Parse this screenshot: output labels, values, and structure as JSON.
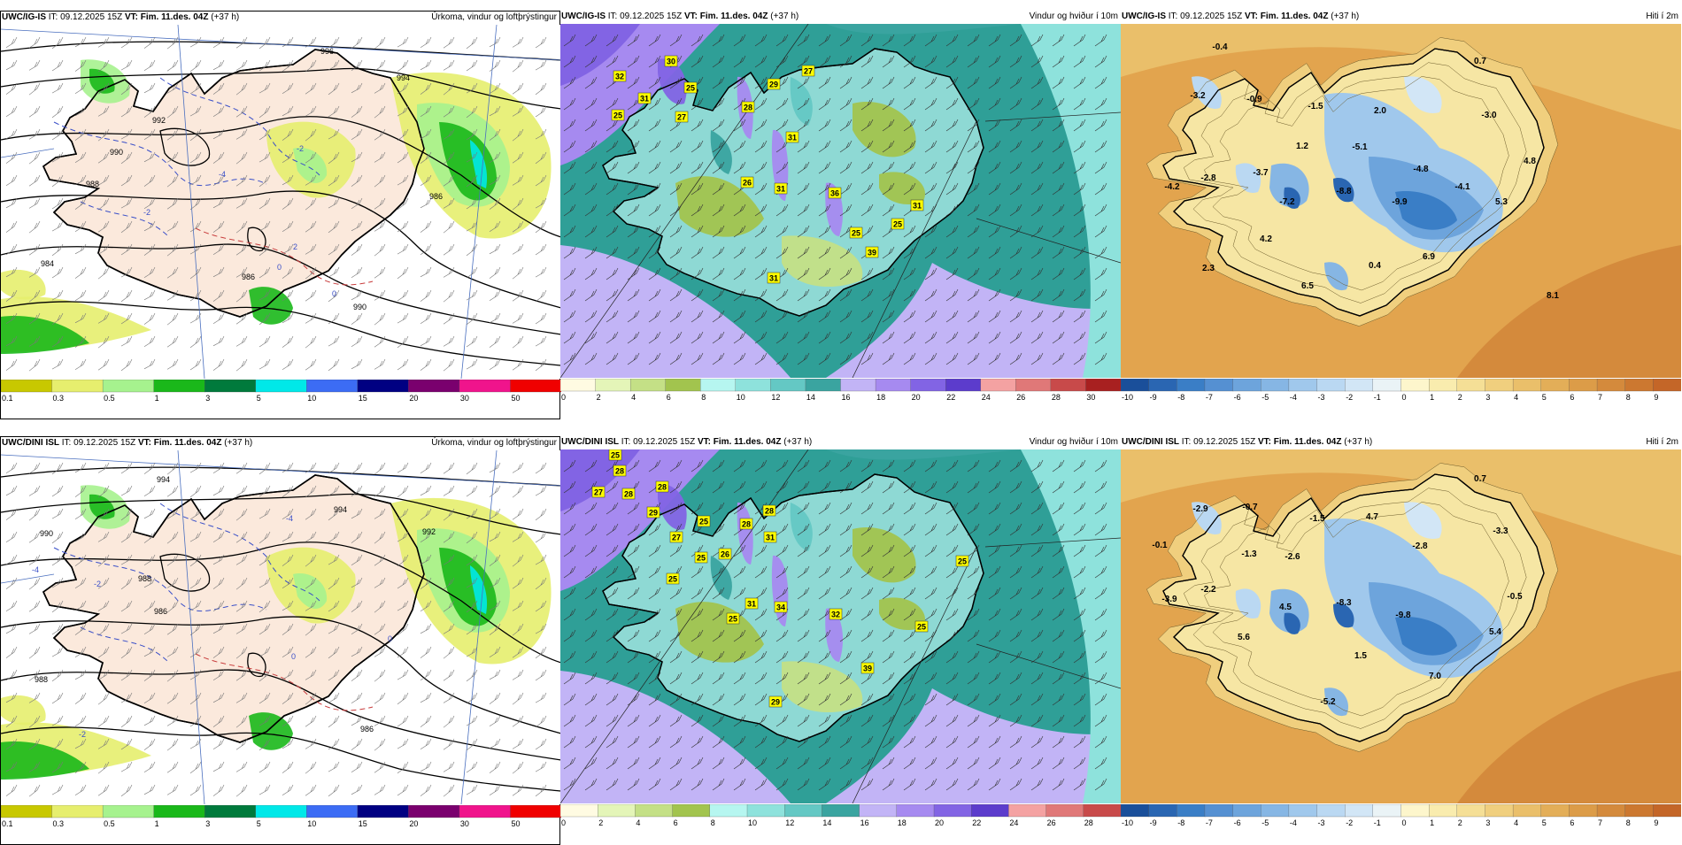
{
  "colors": {
    "land_precip": "#fbe9dc",
    "sea_precip": "#ffffff",
    "wind_sea": "#2f9f97",
    "wind_land": "#8ed9d4",
    "temp_sea": "#e2a44e",
    "temp_land": "#f6e6a4"
  },
  "colorbars": {
    "precip": {
      "labels": [
        "0.1",
        "0.3",
        "0.5",
        "1",
        "3",
        "5",
        "10",
        "15",
        "20",
        "30",
        "50"
      ],
      "colors": [
        "#c8c800",
        "#e6ee6e",
        "#a6f28e",
        "#1ab81a",
        "#007a3c",
        "#00e8e8",
        "#3c6cf4",
        "#000082",
        "#7a006e",
        "#f0148c",
        "#f00000"
      ]
    },
    "wind_top": {
      "labels": [
        "0",
        "2",
        "4",
        "6",
        "8",
        "10",
        "12",
        "14",
        "16",
        "18",
        "20",
        "22",
        "24",
        "26",
        "28",
        "30"
      ],
      "colors": [
        "#fffbe2",
        "#e4f5b8",
        "#c4e086",
        "#a2c44e",
        "#b6f6f0",
        "#8ee2dc",
        "#64c8c4",
        "#3aa4a0",
        "#c2b4f6",
        "#a68af0",
        "#8264e4",
        "#5c3ccc",
        "#f4a2a2",
        "#e07878",
        "#c84a4a",
        "#a82020"
      ]
    },
    "wind_bottom": {
      "labels": [
        "0",
        "2",
        "4",
        "6",
        "8",
        "10",
        "12",
        "14",
        "16",
        "18",
        "20",
        "22",
        "24",
        "26",
        "28"
      ],
      "colors": [
        "#fffbe2",
        "#e4f5b8",
        "#c4e086",
        "#a2c44e",
        "#b6f6f0",
        "#8ee2dc",
        "#64c8c4",
        "#3aa4a0",
        "#c2b4f6",
        "#a68af0",
        "#8264e4",
        "#5c3ccc",
        "#f4a2a2",
        "#e07878",
        "#c84a4a"
      ]
    },
    "temp": {
      "labels": [
        "-10",
        "-9",
        "-8",
        "-7",
        "-6",
        "-5",
        "-4",
        "-3",
        "-2",
        "-1",
        "0",
        "1",
        "2",
        "3",
        "4",
        "5",
        "6",
        "7",
        "8",
        "9"
      ],
      "colors": [
        "#1a4f9a",
        "#2a66b2",
        "#3a7ec6",
        "#5590d2",
        "#6da4dc",
        "#86b6e4",
        "#a0c8ec",
        "#bad8f2",
        "#d2e6f6",
        "#eaf3f6",
        "#fdf6cc",
        "#f9ecae",
        "#f5df96",
        "#f0cf7e",
        "#eabf6a",
        "#e3ae58",
        "#dc9c48",
        "#d48a3c",
        "#cc7830",
        "#c46628"
      ]
    }
  },
  "panels": [
    {
      "id": "p1",
      "model": "UWC/IG-IS",
      "it_label": "IT:",
      "it": "09.12.2025 15Z",
      "vt_label": "VT:",
      "vt": "Fim. 11.des. 04Z",
      "lead": "(+37 h)",
      "field": "Úrkoma, vindur og loftþrýstingur",
      "type": "precip",
      "map_labels": [
        {
          "text": "996",
          "x": 361,
          "y": 33
        },
        {
          "text": "994",
          "x": 447,
          "y": 63
        },
        {
          "text": "992",
          "x": 171,
          "y": 111
        },
        {
          "text": "990",
          "x": 123,
          "y": 147
        },
        {
          "text": "988",
          "x": 96,
          "y": 183
        },
        {
          "text": "986",
          "x": 272,
          "y": 288
        },
        {
          "text": "984",
          "x": 45,
          "y": 273
        },
        {
          "text": "986",
          "x": 484,
          "y": 197
        },
        {
          "text": "990",
          "x": 398,
          "y": 322
        },
        {
          "text": "-2",
          "x": 161,
          "y": 215
        },
        {
          "text": "-2",
          "x": 334,
          "y": 143
        },
        {
          "text": "-4",
          "x": 246,
          "y": 172
        },
        {
          "text": "0",
          "x": 312,
          "y": 277
        },
        {
          "text": "0",
          "x": 374,
          "y": 307
        },
        {
          "text": "2",
          "x": 330,
          "y": 254
        }
      ]
    },
    {
      "id": "p2",
      "model": "UWC/IG-IS",
      "it_label": "IT:",
      "it": "09.12.2025 15Z",
      "vt_label": "VT:",
      "vt": "Fim. 11.des. 04Z",
      "lead": "(+37 h)",
      "field": "Vindur og hviður í 10m",
      "type": "wind",
      "gusts": [
        {
          "text": "30",
          "x": 125,
          "y": 42
        },
        {
          "text": "32",
          "x": 67,
          "y": 59
        },
        {
          "text": "25",
          "x": 147,
          "y": 72
        },
        {
          "text": "31",
          "x": 95,
          "y": 84
        },
        {
          "text": "25",
          "x": 65,
          "y": 103
        },
        {
          "text": "27",
          "x": 137,
          "y": 105
        },
        {
          "text": "27",
          "x": 280,
          "y": 53
        },
        {
          "text": "29",
          "x": 241,
          "y": 68
        },
        {
          "text": "28",
          "x": 212,
          "y": 94
        },
        {
          "text": "31",
          "x": 262,
          "y": 128
        },
        {
          "text": "26",
          "x": 211,
          "y": 179
        },
        {
          "text": "31",
          "x": 249,
          "y": 186
        },
        {
          "text": "36",
          "x": 310,
          "y": 191
        },
        {
          "text": "31",
          "x": 403,
          "y": 205
        },
        {
          "text": "25",
          "x": 381,
          "y": 226
        },
        {
          "text": "25",
          "x": 334,
          "y": 236
        },
        {
          "text": "39",
          "x": 352,
          "y": 258
        },
        {
          "text": "31",
          "x": 241,
          "y": 287
        }
      ]
    },
    {
      "id": "p3",
      "model": "UWC/IG-IS",
      "it_label": "IT:",
      "it": "09.12.2025 15Z",
      "vt_label": "VT:",
      "vt": "Fim. 11.des. 04Z",
      "lead": "(+37 h)",
      "field": "Hiti í 2m",
      "type": "temp",
      "temps": [
        {
          "text": "-0.4",
          "x": 112,
          "y": 29
        },
        {
          "text": "0.7",
          "x": 406,
          "y": 45
        },
        {
          "text": "-3.2",
          "x": 87,
          "y": 84
        },
        {
          "text": "-0.9",
          "x": 151,
          "y": 88
        },
        {
          "text": "-1.5",
          "x": 220,
          "y": 96
        },
        {
          "text": "2.0",
          "x": 293,
          "y": 101
        },
        {
          "text": "-3.0",
          "x": 416,
          "y": 106
        },
        {
          "text": "1.2",
          "x": 205,
          "y": 141
        },
        {
          "text": "-5.1",
          "x": 270,
          "y": 142
        },
        {
          "text": "-3.7",
          "x": 158,
          "y": 171
        },
        {
          "text": "-2.8",
          "x": 99,
          "y": 177
        },
        {
          "text": "-4.8",
          "x": 339,
          "y": 167
        },
        {
          "text": "4.8",
          "x": 462,
          "y": 158
        },
        {
          "text": "-4.2",
          "x": 58,
          "y": 187
        },
        {
          "text": "-8.8",
          "x": 252,
          "y": 192
        },
        {
          "text": "-4.1",
          "x": 386,
          "y": 187
        },
        {
          "text": "-7.2",
          "x": 188,
          "y": 204
        },
        {
          "text": "-9.9",
          "x": 315,
          "y": 204
        },
        {
          "text": "5.3",
          "x": 430,
          "y": 204
        },
        {
          "text": "4.2",
          "x": 164,
          "y": 246
        },
        {
          "text": "6.9",
          "x": 348,
          "y": 266
        },
        {
          "text": "2.3",
          "x": 99,
          "y": 279
        },
        {
          "text": "0.4",
          "x": 287,
          "y": 276
        },
        {
          "text": "6.5",
          "x": 211,
          "y": 299
        },
        {
          "text": "8.1",
          "x": 488,
          "y": 310
        }
      ]
    },
    {
      "id": "p4",
      "model": "UWC/DINI ISL",
      "it_label": "IT:",
      "it": "09.12.2025 15Z",
      "vt_label": "VT:",
      "vt": "Fim. 11.des. 04Z",
      "lead": "(+37 h)",
      "field": "Úrkoma, vindur og loftþrýstingur",
      "type": "precip",
      "map_labels": [
        {
          "text": "994",
          "x": 176,
          "y": 36
        },
        {
          "text": "994",
          "x": 376,
          "y": 70
        },
        {
          "text": "992",
          "x": 476,
          "y": 95
        },
        {
          "text": "990",
          "x": 44,
          "y": 97
        },
        {
          "text": "988",
          "x": 155,
          "y": 148
        },
        {
          "text": "986",
          "x": 173,
          "y": 185
        },
        {
          "text": "986",
          "x": 406,
          "y": 318
        },
        {
          "text": "988",
          "x": 38,
          "y": 262
        },
        {
          "text": "-4",
          "x": 322,
          "y": 80
        },
        {
          "text": "-4",
          "x": 35,
          "y": 138
        },
        {
          "text": "-2",
          "x": 105,
          "y": 154
        },
        {
          "text": "-2",
          "x": 88,
          "y": 324
        },
        {
          "text": "0",
          "x": 328,
          "y": 236
        },
        {
          "text": "0",
          "x": 437,
          "y": 216
        }
      ]
    },
    {
      "id": "p5",
      "model": "UWC/DINI ISL",
      "it_label": "IT:",
      "it": "09.12.2025 15Z",
      "vt_label": "VT:",
      "vt": "Fim. 11.des. 04Z",
      "lead": "(+37 h)",
      "field": "Vindur og hviður í 10m",
      "type": "wind",
      "gusts": [
        {
          "text": "25",
          "x": 62,
          "y": 6
        },
        {
          "text": "28",
          "x": 67,
          "y": 24
        },
        {
          "text": "27",
          "x": 43,
          "y": 48
        },
        {
          "text": "28",
          "x": 77,
          "y": 50
        },
        {
          "text": "28",
          "x": 115,
          "y": 42
        },
        {
          "text": "29",
          "x": 105,
          "y": 71
        },
        {
          "text": "25",
          "x": 162,
          "y": 81
        },
        {
          "text": "28",
          "x": 236,
          "y": 69
        },
        {
          "text": "28",
          "x": 210,
          "y": 84
        },
        {
          "text": "31",
          "x": 237,
          "y": 99
        },
        {
          "text": "27",
          "x": 131,
          "y": 99
        },
        {
          "text": "25",
          "x": 159,
          "y": 122
        },
        {
          "text": "26",
          "x": 186,
          "y": 118
        },
        {
          "text": "25",
          "x": 127,
          "y": 146
        },
        {
          "text": "25",
          "x": 454,
          "y": 126
        },
        {
          "text": "31",
          "x": 216,
          "y": 174
        },
        {
          "text": "34",
          "x": 249,
          "y": 178
        },
        {
          "text": "25",
          "x": 195,
          "y": 191
        },
        {
          "text": "32",
          "x": 311,
          "y": 186
        },
        {
          "text": "25",
          "x": 408,
          "y": 200
        },
        {
          "text": "39",
          "x": 347,
          "y": 247
        },
        {
          "text": "29",
          "x": 243,
          "y": 285
        }
      ]
    },
    {
      "id": "p6",
      "model": "UWC/DINI ISL",
      "it_label": "IT:",
      "it": "09.12.2025 15Z",
      "vt_label": "VT:",
      "vt": "Fim. 11.des. 04Z",
      "lead": "(+37 h)",
      "field": "Hiti í 2m",
      "type": "temp",
      "temps": [
        {
          "text": "0.7",
          "x": 406,
          "y": 36
        },
        {
          "text": "-2.9",
          "x": 90,
          "y": 70
        },
        {
          "text": "-0.7",
          "x": 146,
          "y": 68
        },
        {
          "text": "-1.5",
          "x": 222,
          "y": 81
        },
        {
          "text": "4.7",
          "x": 284,
          "y": 79
        },
        {
          "text": "-3.3",
          "x": 429,
          "y": 95
        },
        {
          "text": "-0.1",
          "x": 44,
          "y": 111
        },
        {
          "text": "-1.3",
          "x": 145,
          "y": 121
        },
        {
          "text": "-2.6",
          "x": 194,
          "y": 124
        },
        {
          "text": "-2.8",
          "x": 338,
          "y": 112
        },
        {
          "text": "-2.2",
          "x": 99,
          "y": 161
        },
        {
          "text": "-3.9",
          "x": 55,
          "y": 172
        },
        {
          "text": "4.5",
          "x": 186,
          "y": 181
        },
        {
          "text": "-8.3",
          "x": 252,
          "y": 176
        },
        {
          "text": "-9.8",
          "x": 319,
          "y": 190
        },
        {
          "text": "-0.5",
          "x": 445,
          "y": 169
        },
        {
          "text": "5.4",
          "x": 423,
          "y": 209
        },
        {
          "text": "5.6",
          "x": 139,
          "y": 215
        },
        {
          "text": "1.5",
          "x": 271,
          "y": 236
        },
        {
          "text": "7.0",
          "x": 355,
          "y": 259
        },
        {
          "text": "-5.2",
          "x": 234,
          "y": 288
        }
      ]
    }
  ]
}
